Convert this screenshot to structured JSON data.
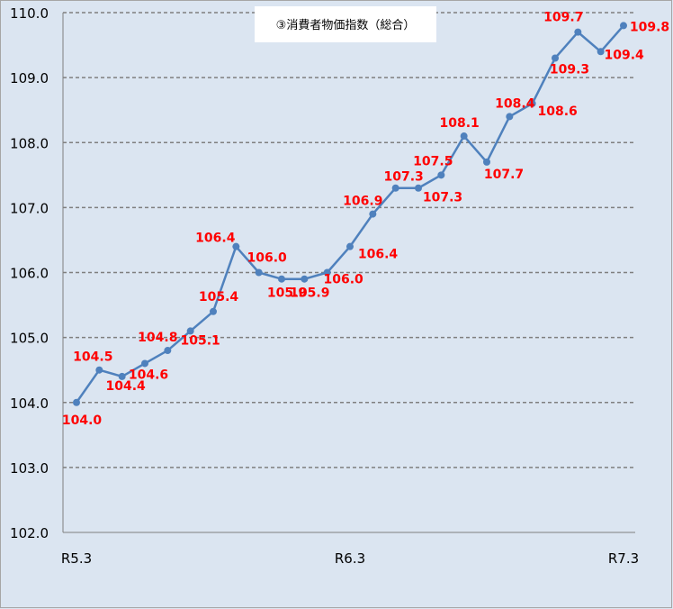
{
  "chart_data": {
    "type": "line",
    "title": "③消費者物価指数（総合）",
    "xlabel": "",
    "ylabel": "",
    "ylim": [
      102.0,
      110.0
    ],
    "y_ticks": [
      "102.0",
      "103.0",
      "104.0",
      "105.0",
      "106.0",
      "107.0",
      "108.0",
      "109.0",
      "110.0"
    ],
    "x_tick_labels": [
      {
        "index": 0,
        "label": "R5.3"
      },
      {
        "index": 12,
        "label": "R6.3"
      },
      {
        "index": 24,
        "label": "R7.3"
      }
    ],
    "grid": true,
    "legend": "none",
    "colors": {
      "line": "#4f81bd",
      "labels": "#ff0000",
      "background": "#dbe5f1"
    },
    "series": [
      {
        "values": [
          104.0,
          104.5,
          104.4,
          104.6,
          104.8,
          105.1,
          105.4,
          106.4,
          106.0,
          105.9,
          105.9,
          106.0,
          106.4,
          106.9,
          107.3,
          107.3,
          107.5,
          108.1,
          107.7,
          108.4,
          108.6,
          109.3,
          109.7,
          109.4,
          109.8
        ],
        "labels": [
          "104.0",
          "104.5",
          "104.4",
          "104.6",
          "104.8",
          "105.1",
          "105.4",
          "106.4",
          "106.0",
          "105.9",
          "105.9",
          "106.0",
          "106.4",
          "106.9",
          "107.3",
          "107.3",
          "107.5",
          "108.1",
          "107.7",
          "108.4",
          "108.6",
          "109.3",
          "109.7",
          "109.4",
          "109.8"
        ]
      }
    ]
  }
}
